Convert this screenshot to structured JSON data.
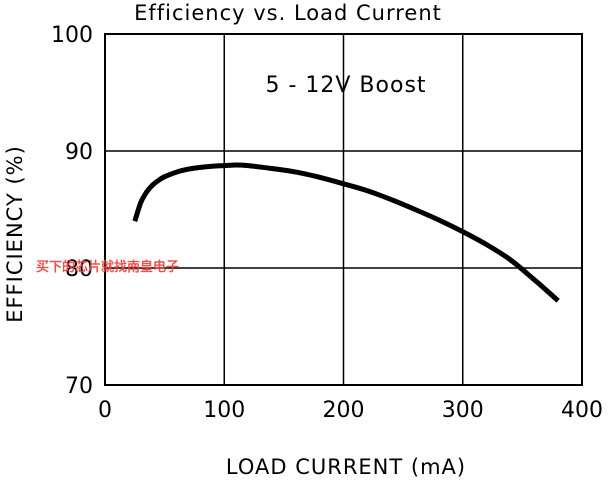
{
  "chart_data": {
    "type": "line",
    "title": "Efficiency vs. Load Current",
    "xlabel": "LOAD CURRENT (mA)",
    "ylabel": "EFFICIENCY (%)",
    "xlim": [
      0,
      400
    ],
    "ylim": [
      70,
      100
    ],
    "xticks": [
      "0",
      "100",
      "200",
      "300",
      "400"
    ],
    "yticks": [
      "70",
      "80",
      "90",
      "100"
    ],
    "grid": true,
    "annotation": "5 - 12V Boost",
    "series": [
      {
        "x": [
          25,
          30,
          35,
          40,
          45,
          50,
          60,
          70,
          80,
          90,
          100,
          110,
          120,
          140,
          160,
          180,
          200,
          220,
          240,
          260,
          280,
          300,
          320,
          340,
          360,
          380
        ],
        "y": [
          84.0,
          85.6,
          86.5,
          87.1,
          87.5,
          87.8,
          88.2,
          88.45,
          88.6,
          88.7,
          88.75,
          88.8,
          88.75,
          88.5,
          88.2,
          87.75,
          87.2,
          86.6,
          85.85,
          85.0,
          84.1,
          83.1,
          82.0,
          80.7,
          79.0,
          77.2
        ]
      }
    ],
    "line_color": "#000000"
  },
  "watermark": "买下的芯片就找南皇电子"
}
